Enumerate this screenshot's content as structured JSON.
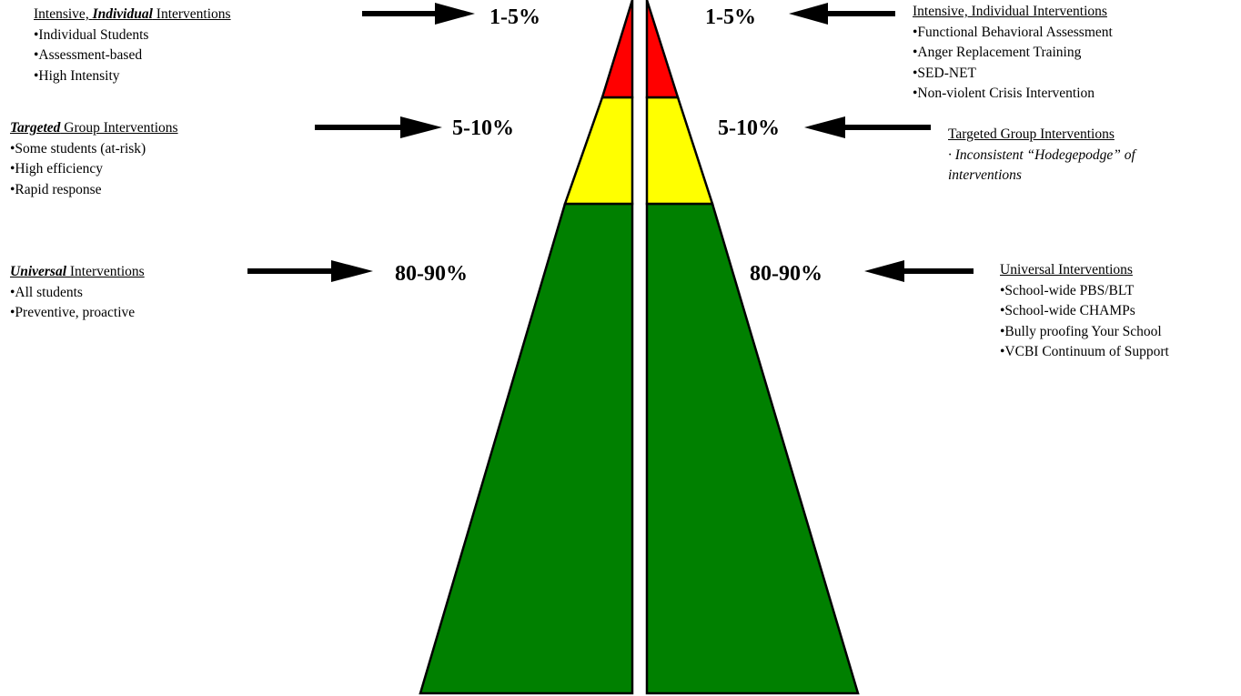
{
  "colors": {
    "red": "#ff0000",
    "yellow": "#ffff00",
    "green": "#008000",
    "arrow": "#000000",
    "outline": "#000000"
  },
  "tier_shares": {
    "intensive": "1-5%",
    "targeted": "5-10%",
    "universal": "80-90%"
  },
  "left": {
    "intensive": {
      "heading_pre": "Intensive, ",
      "heading_emph": "Individual",
      "heading_post": " Interventions",
      "items": [
        "•Individual Students",
        "•Assessment-based",
        "•High Intensity"
      ],
      "pct": "1-5%"
    },
    "targeted": {
      "heading_emph": "Targeted",
      "heading_post": " Group Interventions",
      "items": [
        "•Some students (at-risk)",
        "•High efficiency",
        "•Rapid response"
      ],
      "pct": "5-10%"
    },
    "universal": {
      "heading_emph": "Universal",
      "heading_post": " Interventions",
      "items": [
        "•All students",
        "•Preventive,  proactive"
      ],
      "pct": "80-90%"
    }
  },
  "right": {
    "intensive": {
      "heading": "Intensive, Individual Interventions",
      "items": [
        "•Functional Behavioral Assessment",
        "•Anger Replacement Training",
        "•SED-NET",
        "•Non-violent Crisis Intervention"
      ],
      "pct": "1-5%"
    },
    "targeted": {
      "heading": "Targeted Group Interventions",
      "items": [
        "· Inconsistent “Hodegepodge” of",
        "interventions"
      ],
      "pct": "5-10%"
    },
    "universal": {
      "heading": "Universal Interventions",
      "items": [
        "•School-wide PBS/BLT",
        "•School-wide CHAMPs",
        "•Bully proofing Your School",
        "•VCBI Continuum of Support"
      ],
      "pct": "80-90%"
    }
  }
}
